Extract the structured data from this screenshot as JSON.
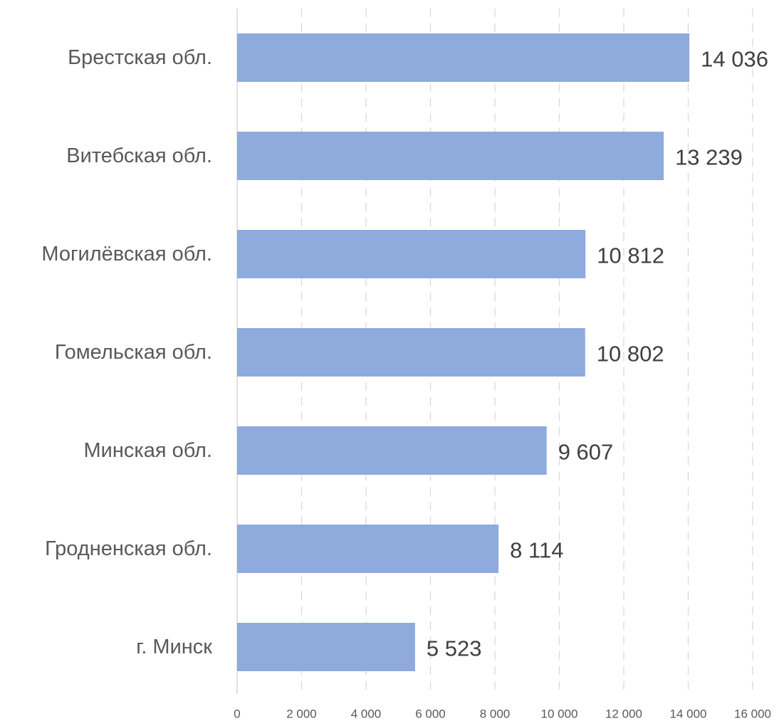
{
  "chart_data": {
    "type": "bar",
    "orientation": "horizontal",
    "categories": [
      "Брестская обл.",
      "Витебская обл.",
      "Могилёвская обл.",
      "Гомельская обл.",
      "Минская обл.",
      "Гродненская обл.",
      "г. Минск"
    ],
    "values": [
      14036,
      13239,
      10812,
      10802,
      9607,
      8114,
      5523
    ],
    "value_labels": [
      "14 036",
      "13 239",
      "10 812",
      "10 802",
      "9 607",
      "8 114",
      "5 523"
    ],
    "x_ticks": [
      0,
      2000,
      4000,
      6000,
      8000,
      10000,
      12000,
      14000,
      16000
    ],
    "x_tick_labels": [
      "0",
      "2 000",
      "4 000",
      "6 000",
      "8 000",
      "10 000",
      "12 000",
      "14 000",
      "16 000"
    ],
    "xlim": [
      0,
      16000
    ],
    "grid": "vertical dashed",
    "legend": "none",
    "bar_color": "#8FAADC",
    "title": "",
    "xlabel": "",
    "ylabel": ""
  }
}
